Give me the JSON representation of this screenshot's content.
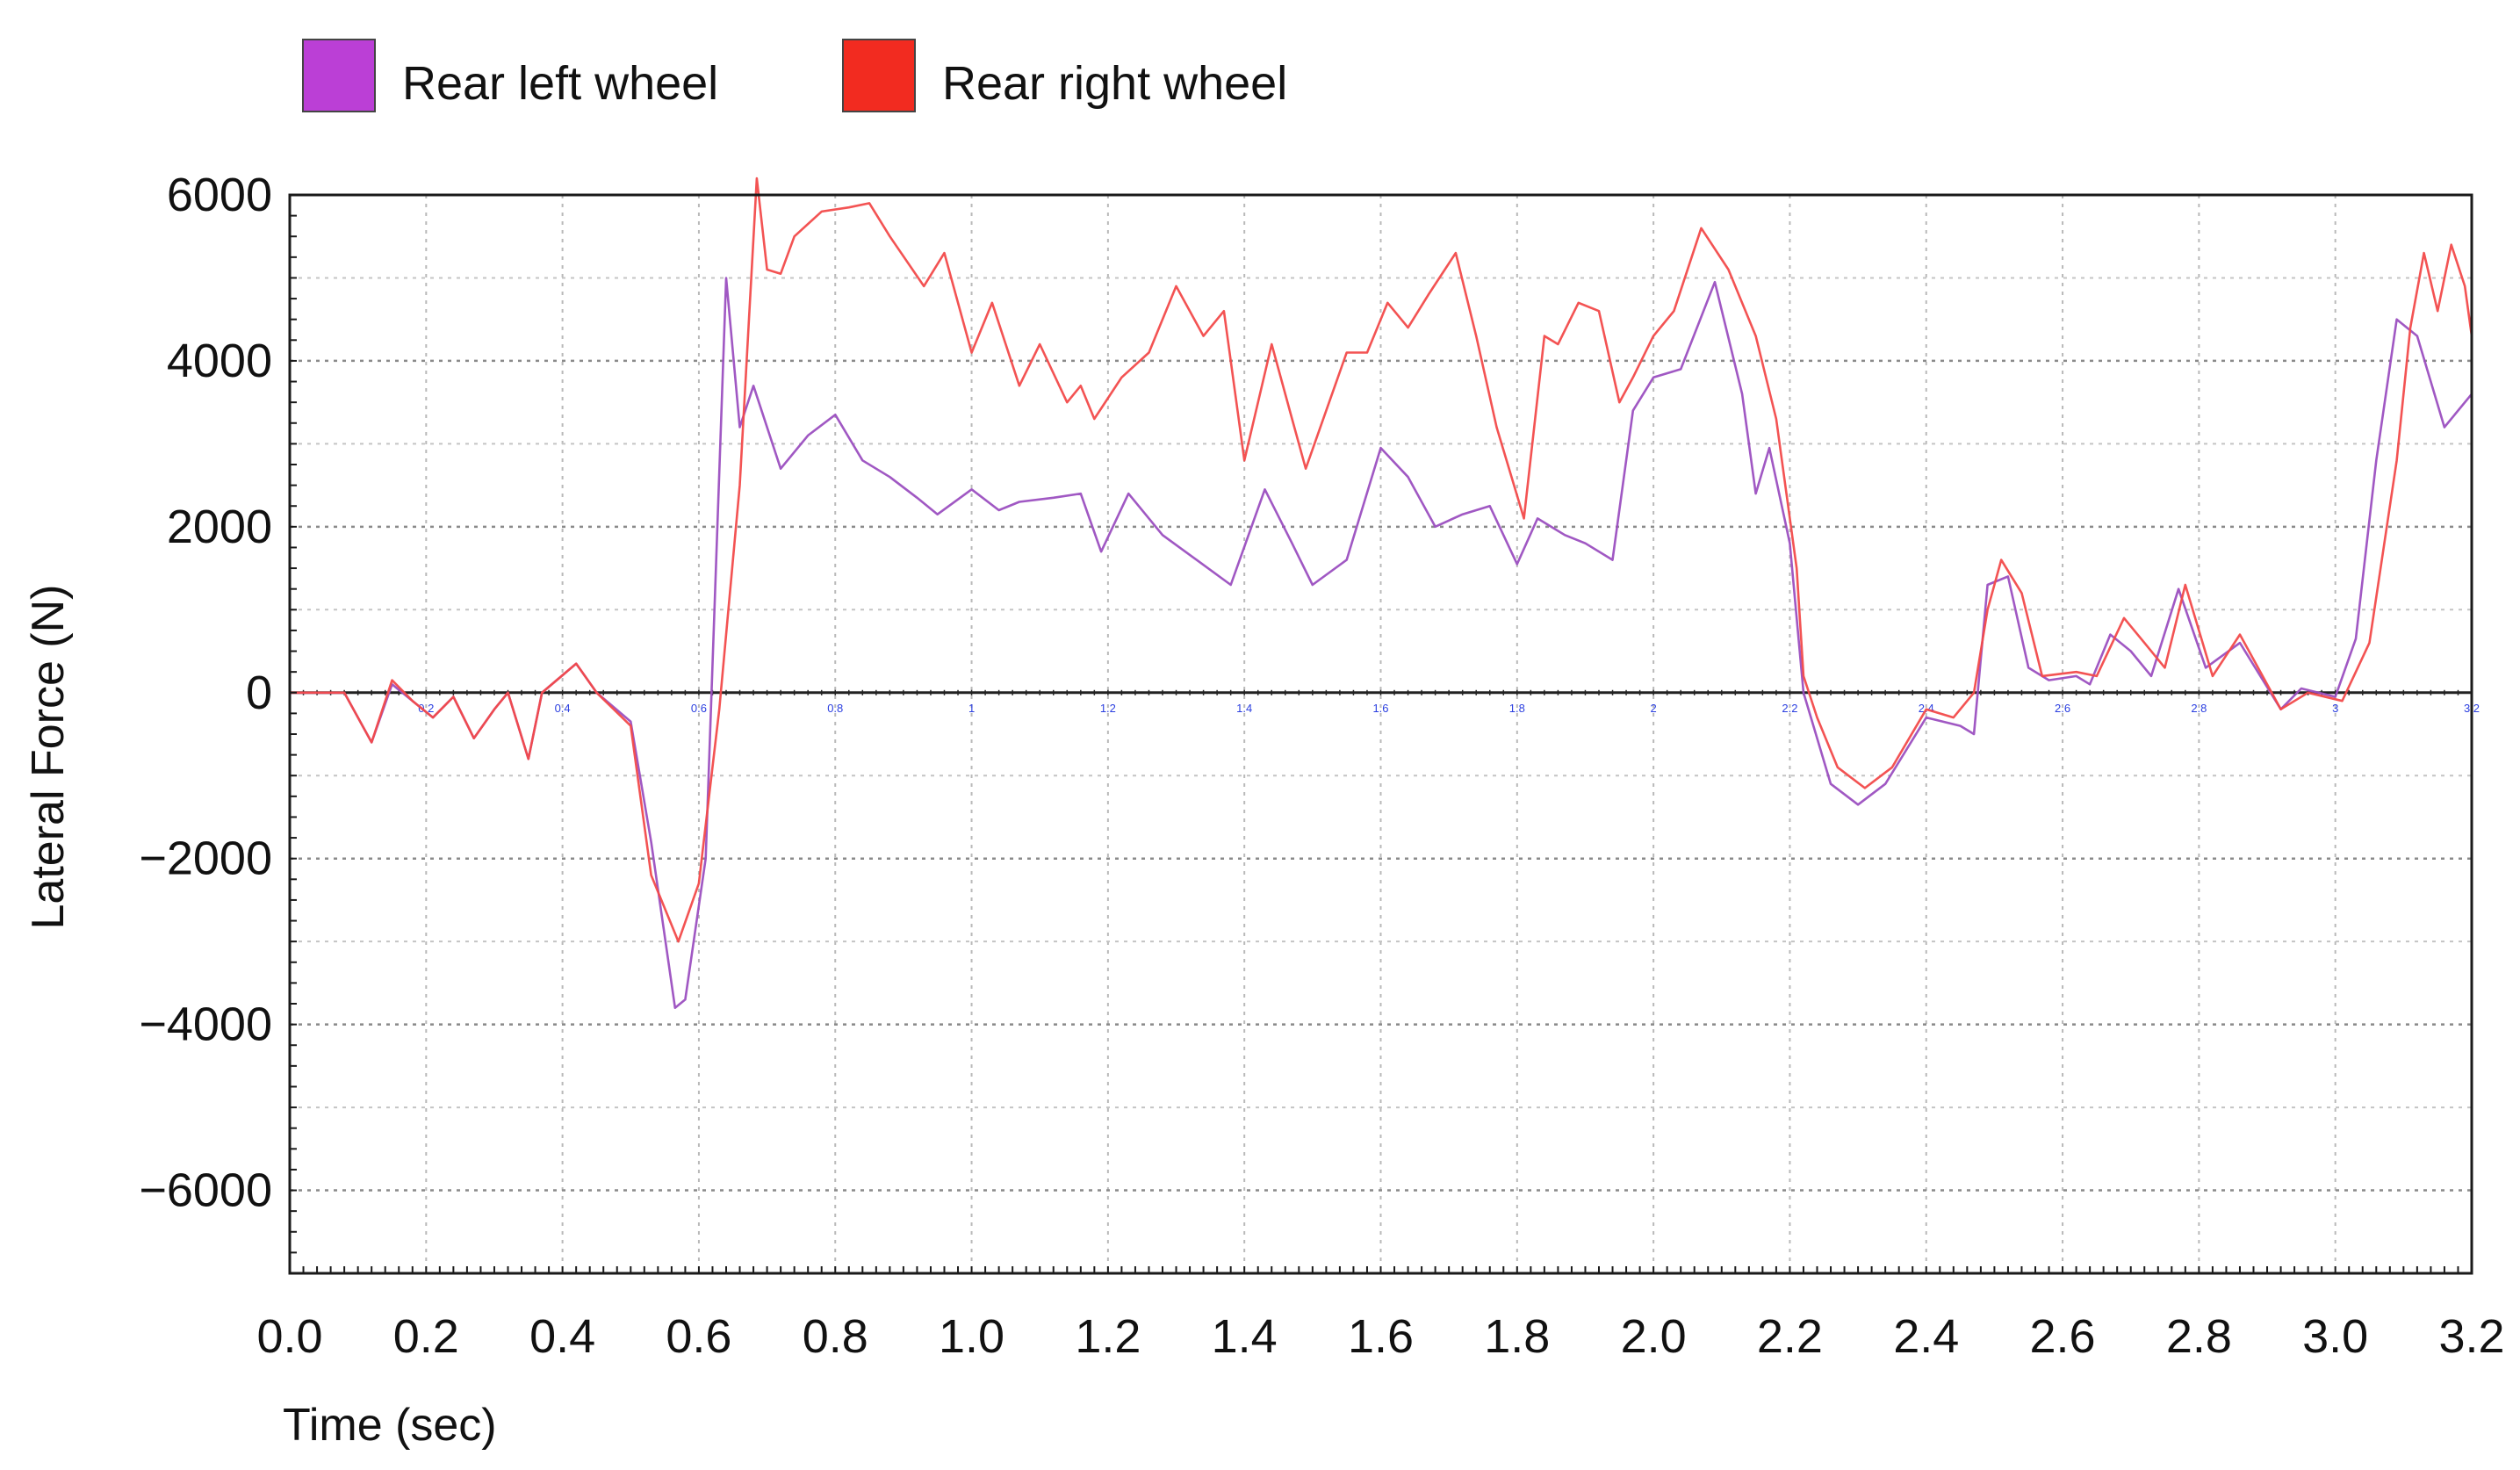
{
  "chart_data": {
    "type": "line",
    "title": "",
    "xlabel": "Time (sec)",
    "ylabel": "Lateral Force (N)",
    "xlim": [
      0,
      3.2
    ],
    "ylim": [
      -7000,
      6000
    ],
    "x_ticks": [
      "0.0",
      "0.2",
      "0.4",
      "0.6",
      "0.8",
      "1.0",
      "1.2",
      "1.4",
      "1.6",
      "1.8",
      "2.0",
      "2.2",
      "2.4",
      "2.6",
      "2.8",
      "3.0",
      "3.2"
    ],
    "y_ticks": [
      {
        "value": 6000,
        "label": "6000"
      },
      {
        "value": 4000,
        "label": "4000"
      },
      {
        "value": 2000,
        "label": "2000"
      },
      {
        "value": 0,
        "label": "0"
      },
      {
        "value": -2000,
        "label": "−2000"
      },
      {
        "value": -4000,
        "label": "−4000"
      },
      {
        "value": -6000,
        "label": "−6000"
      }
    ],
    "inner_axis_labels": [
      "0.2",
      "0.4",
      "0.6",
      "0.8",
      "1",
      "1.2",
      "1.4",
      "1.6",
      "1.8",
      "2",
      "2.2",
      "2.4",
      "2.6",
      "2.8",
      "3",
      "3.2"
    ],
    "grid": true,
    "legend_position": "top-left, above plot",
    "series": [
      {
        "name": "Rear left wheel",
        "color": "#9b4fc0",
        "legend_color": "#bb3fd6",
        "points": [
          [
            0.0,
            0
          ],
          [
            0.08,
            0
          ],
          [
            0.12,
            -600
          ],
          [
            0.15,
            100
          ],
          [
            0.18,
            -100
          ],
          [
            0.21,
            -300
          ],
          [
            0.24,
            -50
          ],
          [
            0.27,
            -550
          ],
          [
            0.3,
            -200
          ],
          [
            0.32,
            0
          ],
          [
            0.35,
            -800
          ],
          [
            0.37,
            0
          ],
          [
            0.42,
            350
          ],
          [
            0.45,
            0
          ],
          [
            0.5,
            -350
          ],
          [
            0.53,
            -1800
          ],
          [
            0.565,
            -3800
          ],
          [
            0.58,
            -3700
          ],
          [
            0.61,
            -2000
          ],
          [
            0.64,
            5000
          ],
          [
            0.66,
            3200
          ],
          [
            0.68,
            3700
          ],
          [
            0.72,
            2700
          ],
          [
            0.76,
            3100
          ],
          [
            0.8,
            3350
          ],
          [
            0.84,
            2800
          ],
          [
            0.88,
            2600
          ],
          [
            0.92,
            2350
          ],
          [
            0.95,
            2150
          ],
          [
            1.0,
            2450
          ],
          [
            1.04,
            2200
          ],
          [
            1.07,
            2300
          ],
          [
            1.12,
            2350
          ],
          [
            1.16,
            2400
          ],
          [
            1.19,
            1700
          ],
          [
            1.23,
            2400
          ],
          [
            1.28,
            1900
          ],
          [
            1.33,
            1600
          ],
          [
            1.38,
            1300
          ],
          [
            1.43,
            2450
          ],
          [
            1.47,
            1800
          ],
          [
            1.5,
            1300
          ],
          [
            1.55,
            1600
          ],
          [
            1.6,
            2950
          ],
          [
            1.64,
            2600
          ],
          [
            1.68,
            2000
          ],
          [
            1.72,
            2150
          ],
          [
            1.76,
            2250
          ],
          [
            1.8,
            1550
          ],
          [
            1.83,
            2100
          ],
          [
            1.87,
            1900
          ],
          [
            1.9,
            1800
          ],
          [
            1.94,
            1600
          ],
          [
            1.97,
            3400
          ],
          [
            2.0,
            3800
          ],
          [
            2.04,
            3900
          ],
          [
            2.09,
            4950
          ],
          [
            2.13,
            3600
          ],
          [
            2.15,
            2400
          ],
          [
            2.17,
            2950
          ],
          [
            2.2,
            1800
          ],
          [
            2.22,
            0
          ],
          [
            2.26,
            -1100
          ],
          [
            2.3,
            -1350
          ],
          [
            2.34,
            -1100
          ],
          [
            2.4,
            -300
          ],
          [
            2.45,
            -400
          ],
          [
            2.47,
            -500
          ],
          [
            2.49,
            1300
          ],
          [
            2.52,
            1400
          ],
          [
            2.55,
            300
          ],
          [
            2.58,
            150
          ],
          [
            2.62,
            200
          ],
          [
            2.64,
            100
          ],
          [
            2.67,
            700
          ],
          [
            2.7,
            500
          ],
          [
            2.73,
            200
          ],
          [
            2.77,
            1250
          ],
          [
            2.81,
            300
          ],
          [
            2.86,
            600
          ],
          [
            2.92,
            -200
          ],
          [
            2.95,
            50
          ],
          [
            3.0,
            -50
          ],
          [
            3.03,
            650
          ],
          [
            3.06,
            2800
          ],
          [
            3.09,
            4500
          ],
          [
            3.12,
            4300
          ],
          [
            3.16,
            3200
          ],
          [
            3.2,
            3600
          ]
        ]
      },
      {
        "name": "Rear right wheel",
        "color": "#f24a4a",
        "legend_color": "#f22b20",
        "points": [
          [
            0.0,
            0
          ],
          [
            0.08,
            0
          ],
          [
            0.12,
            -600
          ],
          [
            0.15,
            150
          ],
          [
            0.18,
            -100
          ],
          [
            0.21,
            -300
          ],
          [
            0.24,
            -50
          ],
          [
            0.27,
            -550
          ],
          [
            0.3,
            -200
          ],
          [
            0.32,
            0
          ],
          [
            0.35,
            -800
          ],
          [
            0.37,
            0
          ],
          [
            0.42,
            350
          ],
          [
            0.45,
            0
          ],
          [
            0.5,
            -400
          ],
          [
            0.53,
            -2200
          ],
          [
            0.57,
            -3000
          ],
          [
            0.6,
            -2300
          ],
          [
            0.63,
            -200
          ],
          [
            0.66,
            2500
          ],
          [
            0.685,
            6200
          ],
          [
            0.7,
            5100
          ],
          [
            0.72,
            5050
          ],
          [
            0.74,
            5500
          ],
          [
            0.78,
            5800
          ],
          [
            0.82,
            5850
          ],
          [
            0.85,
            5900
          ],
          [
            0.88,
            5500
          ],
          [
            0.93,
            4900
          ],
          [
            0.96,
            5300
          ],
          [
            1.0,
            4100
          ],
          [
            1.03,
            4700
          ],
          [
            1.07,
            3700
          ],
          [
            1.1,
            4200
          ],
          [
            1.14,
            3500
          ],
          [
            1.16,
            3700
          ],
          [
            1.18,
            3300
          ],
          [
            1.22,
            3800
          ],
          [
            1.26,
            4100
          ],
          [
            1.3,
            4900
          ],
          [
            1.34,
            4300
          ],
          [
            1.37,
            4600
          ],
          [
            1.4,
            2800
          ],
          [
            1.44,
            4200
          ],
          [
            1.47,
            3300
          ],
          [
            1.49,
            2700
          ],
          [
            1.52,
            3400
          ],
          [
            1.55,
            4100
          ],
          [
            1.58,
            4100
          ],
          [
            1.61,
            4700
          ],
          [
            1.64,
            4400
          ],
          [
            1.67,
            4800
          ],
          [
            1.71,
            5300
          ],
          [
            1.74,
            4300
          ],
          [
            1.77,
            3200
          ],
          [
            1.81,
            2100
          ],
          [
            1.84,
            4300
          ],
          [
            1.86,
            4200
          ],
          [
            1.89,
            4700
          ],
          [
            1.92,
            4600
          ],
          [
            1.95,
            3500
          ],
          [
            1.97,
            3800
          ],
          [
            2.0,
            4300
          ],
          [
            2.03,
            4600
          ],
          [
            2.07,
            5600
          ],
          [
            2.11,
            5100
          ],
          [
            2.15,
            4300
          ],
          [
            2.18,
            3300
          ],
          [
            2.21,
            1500
          ],
          [
            2.22,
            200
          ],
          [
            2.24,
            -300
          ],
          [
            2.27,
            -900
          ],
          [
            2.31,
            -1150
          ],
          [
            2.35,
            -900
          ],
          [
            2.4,
            -200
          ],
          [
            2.44,
            -300
          ],
          [
            2.47,
            0
          ],
          [
            2.49,
            1000
          ],
          [
            2.51,
            1600
          ],
          [
            2.54,
            1200
          ],
          [
            2.57,
            200
          ],
          [
            2.62,
            250
          ],
          [
            2.65,
            200
          ],
          [
            2.69,
            900
          ],
          [
            2.72,
            600
          ],
          [
            2.75,
            300
          ],
          [
            2.78,
            1300
          ],
          [
            2.82,
            200
          ],
          [
            2.86,
            700
          ],
          [
            2.92,
            -200
          ],
          [
            2.96,
            0
          ],
          [
            3.01,
            -100
          ],
          [
            3.05,
            600
          ],
          [
            3.09,
            2800
          ],
          [
            3.11,
            4400
          ],
          [
            3.13,
            5300
          ],
          [
            3.15,
            4600
          ],
          [
            3.17,
            5400
          ],
          [
            3.19,
            4900
          ],
          [
            3.2,
            4300
          ]
        ]
      }
    ]
  }
}
